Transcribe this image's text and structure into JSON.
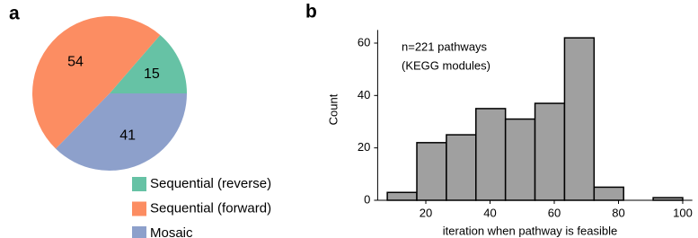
{
  "chart_data": [
    {
      "type": "pie",
      "panel_label": "a",
      "categories": [
        "Sequential (reverse)",
        "Sequential (forward)",
        "Mosaic"
      ],
      "values": [
        15,
        54,
        41
      ],
      "colors": [
        "#66c2a5",
        "#fc8d62",
        "#8da0cb"
      ],
      "legend": "lower right"
    },
    {
      "type": "histogram",
      "panel_label": "b",
      "annotation": [
        "n=221 pathways",
        "(KEGG modules)"
      ],
      "xlabel": "iteration when pathway is feasible",
      "ylabel": "Count",
      "bins": [
        8,
        17.2,
        26.4,
        35.6,
        44.8,
        54,
        63.2,
        72.4,
        81.6,
        90.8,
        100
      ],
      "values": [
        3,
        22,
        25,
        35,
        31,
        37,
        62,
        5,
        0,
        1
      ],
      "color": "#a0a0a0",
      "edgecolor": "#000000",
      "xlim": [
        5,
        103
      ],
      "ylim": [
        0,
        65
      ],
      "xticks": [
        20,
        40,
        60,
        80,
        100
      ],
      "yticks": [
        0,
        20,
        40,
        60
      ]
    }
  ]
}
